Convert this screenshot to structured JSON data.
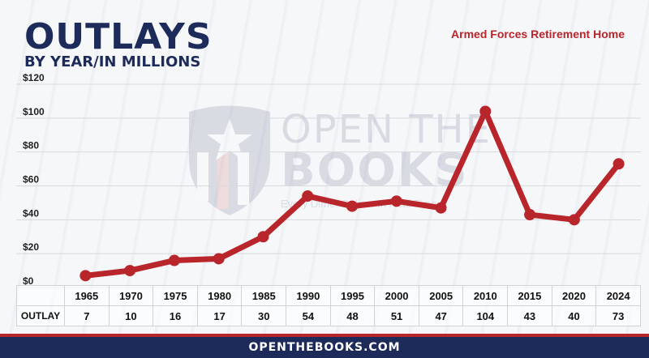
{
  "header": {
    "title": "OUTLAYS",
    "subtitle": "BY YEAR/IN MILLIONS",
    "agency": "Armed Forces Retirement Home"
  },
  "watermark": {
    "line1": "OPEN THE",
    "line2": "BOOKS",
    "tagline": "Every Dime. Online. In Real Time.",
    "icon": "shield-star-logo"
  },
  "footer": {
    "text": "OPENTHEBOOKS.COM"
  },
  "colors": {
    "line": "#b8252a",
    "navy": "#1d2b5a",
    "accent": "#b8252a"
  },
  "chart_data": {
    "type": "line",
    "title": "OUTLAYS",
    "subtitle": "BY YEAR/IN MILLIONS",
    "categories": [
      "1965",
      "1970",
      "1975",
      "1980",
      "1985",
      "1990",
      "1995",
      "2000",
      "2005",
      "2010",
      "2015",
      "2020",
      "2024"
    ],
    "series": [
      {
        "values": [
          7,
          10,
          16,
          17,
          30,
          54,
          48,
          51,
          47,
          104,
          43,
          40,
          73
        ]
      }
    ],
    "table_row_label": "OUTLAY",
    "ylim": [
      0,
      120
    ],
    "yticks": [
      0,
      20,
      40,
      60,
      80,
      100,
      120
    ],
    "ytick_labels": [
      "$0",
      "$20",
      "$40",
      "$60",
      "$80",
      "$100",
      "$120"
    ],
    "grid": true,
    "xlabel": "",
    "ylabel": ""
  }
}
